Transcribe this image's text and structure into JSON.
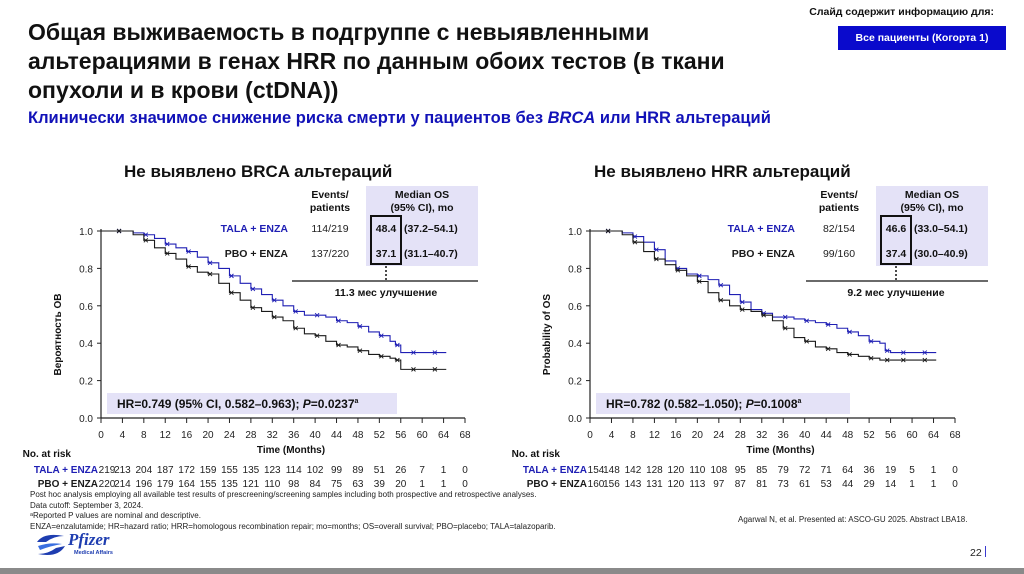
{
  "header": {
    "title": "Общая выживаемость в подгруппе с невыявленными альтерациями в генах HRR по данным обоих тестов (в ткани опухоли и в крови (ctDNA))",
    "subtitle_part1": "Клинически значимое снижение риска смерти у пациентов без ",
    "subtitle_italic": "BRCA",
    "subtitle_part2": " или HRR альтераций",
    "info_label": "Слайд содержит информацию для:",
    "info_badge": "Все пациенты (Когорта 1)"
  },
  "colors": {
    "tala_enza": "#1f1fb4",
    "pbo_enza": "#1a1a1a",
    "table_highlight": "#e4e2f7",
    "badge_bg": "#0a0acc",
    "subtitle": "#1212b8"
  },
  "table_headers": {
    "events": "Events/",
    "patients": "patients",
    "median_os": "Median OS",
    "ci": "(95% CI), mo"
  },
  "axis": {
    "xlabel": "Time (Months)",
    "at_risk_label": "No. at risk",
    "x_ticks": [
      "0",
      "4",
      "8",
      "12",
      "16",
      "20",
      "24",
      "28",
      "32",
      "36",
      "40",
      "44",
      "48",
      "52",
      "56",
      "60",
      "64",
      "68"
    ],
    "y_ticks": [
      "0.0",
      "0.2",
      "0.4",
      "0.6",
      "0.8",
      "1.0"
    ]
  },
  "panels": [
    {
      "title": "Не выявлено BRCA альтераций",
      "ylabel": "Вероятность ОВ",
      "arms": [
        {
          "name": "TALA + ENZA",
          "events": "114/219",
          "median": "48.4",
          "ci": "(37.2–54.1)"
        },
        {
          "name": "PBO + ENZA",
          "events": "137/220",
          "median": "37.1",
          "ci": "(31.1–40.7)"
        }
      ],
      "improvement": "11.3 мес улучшение",
      "hr_text": "HR=0.749 (95% CI, 0.582–0.963); ",
      "p_label": "P",
      "p_value": "=0.0237",
      "p_sup": "a",
      "at_risk": {
        "TALA + ENZA": [
          "219",
          "213",
          "204",
          "187",
          "172",
          "159",
          "155",
          "135",
          "123",
          "114",
          "102",
          "99",
          "89",
          "51",
          "26",
          "7",
          "1",
          "0"
        ],
        "PBO + ENZA": [
          "220",
          "214",
          "196",
          "179",
          "164",
          "155",
          "135",
          "121",
          "110",
          "98",
          "84",
          "75",
          "63",
          "39",
          "20",
          "1",
          "1",
          "0"
        ]
      }
    },
    {
      "title": "Не выявлено HRR альтераций",
      "ylabel": "Probability of OS",
      "arms": [
        {
          "name": "TALA + ENZA",
          "events": "82/154",
          "median": "46.6",
          "ci": "(33.0–54.1)"
        },
        {
          "name": "PBO + ENZA",
          "events": "99/160",
          "median": "37.4",
          "ci": "(30.0–40.9)"
        }
      ],
      "improvement": "9.2 мес улучшение",
      "hr_text": "HR=0.782 (0.582–1.050); ",
      "p_label": "P",
      "p_value": "=0.1008",
      "p_sup": "a",
      "at_risk": {
        "TALA + ENZA": [
          "154",
          "148",
          "142",
          "128",
          "120",
          "110",
          "108",
          "95",
          "85",
          "79",
          "72",
          "71",
          "64",
          "36",
          "19",
          "5",
          "1",
          "0"
        ],
        "PBO + ENZA": [
          "160",
          "156",
          "143",
          "131",
          "120",
          "113",
          "97",
          "87",
          "81",
          "73",
          "61",
          "53",
          "44",
          "29",
          "14",
          "1",
          "1",
          "0"
        ]
      }
    }
  ],
  "footer": {
    "notes": [
      "Post hoc analysis employing all available test results of prescreening/screening samples including both prospective and retrospective analyses.",
      "Data cutoff: September 3, 2024.",
      "ᵃReported P values are nominal and descriptive.",
      "ENZA=enzalutamide; HR=hazard ratio; HRR=homologous recombination repair; mo=months; OS=overall survival; PBO=placebo; TALA=talazoparib."
    ],
    "citation": "Agarwal N, et al. Presented at: ASCO-GU 2025. Abstract LBA18.",
    "page": "22",
    "logo_text": "Pfizer",
    "logo_sub": "Medical Affairs"
  },
  "chart_data": [
    {
      "type": "line",
      "title": "Не выявлено BRCA альтераций",
      "xlabel": "Time (Months)",
      "ylabel": "Вероятность ОВ",
      "xlim": [
        0,
        68
      ],
      "ylim": [
        0,
        1.0
      ],
      "x_ticks": [
        0,
        4,
        8,
        12,
        16,
        20,
        24,
        28,
        32,
        36,
        40,
        44,
        48,
        52,
        56,
        60,
        64,
        68
      ],
      "y_ticks": [
        0.0,
        0.2,
        0.4,
        0.6,
        0.8,
        1.0
      ],
      "grid": false,
      "step": true,
      "series": [
        {
          "name": "TALA + ENZA",
          "color": "#1f1fb4",
          "x": [
            0,
            3,
            6,
            8,
            10,
            12,
            14,
            16,
            18,
            20,
            22,
            24,
            26,
            28,
            30,
            32,
            34,
            36,
            38,
            40,
            42,
            44,
            46,
            48,
            50,
            52,
            54,
            55,
            56,
            58,
            60,
            62,
            64
          ],
          "y": [
            1.0,
            1.0,
            0.99,
            0.98,
            0.96,
            0.93,
            0.91,
            0.89,
            0.86,
            0.83,
            0.8,
            0.76,
            0.72,
            0.69,
            0.66,
            0.63,
            0.6,
            0.57,
            0.55,
            0.55,
            0.54,
            0.52,
            0.51,
            0.49,
            0.46,
            0.44,
            0.41,
            0.39,
            0.35,
            0.35,
            0.35,
            0.35,
            0.35
          ]
        },
        {
          "name": "PBO + ENZA",
          "color": "#1a1a1a",
          "x": [
            0,
            3,
            6,
            8,
            10,
            12,
            14,
            16,
            18,
            20,
            22,
            24,
            26,
            28,
            30,
            32,
            34,
            36,
            38,
            40,
            42,
            44,
            46,
            48,
            50,
            52,
            54,
            55,
            56,
            58,
            60,
            62,
            64
          ],
          "y": [
            1.0,
            1.0,
            0.98,
            0.95,
            0.91,
            0.88,
            0.85,
            0.81,
            0.78,
            0.77,
            0.72,
            0.67,
            0.63,
            0.59,
            0.57,
            0.54,
            0.52,
            0.48,
            0.45,
            0.44,
            0.41,
            0.39,
            0.38,
            0.36,
            0.34,
            0.33,
            0.32,
            0.31,
            0.26,
            0.26,
            0.26,
            0.26,
            0.26
          ]
        }
      ],
      "annotations": [
        "114/219 vs 137/220 events/patients",
        "Median OS 48.4 (37.2–54.1) vs 37.1 (31.1–40.7) mo",
        "11.3 мес улучшение",
        "HR=0.749 (95% CI, 0.582–0.963); P=0.0237"
      ]
    },
    {
      "type": "line",
      "title": "Не выявлено HRR альтераций",
      "xlabel": "Time (Months)",
      "ylabel": "Probability of OS",
      "xlim": [
        0,
        68
      ],
      "ylim": [
        0,
        1.0
      ],
      "x_ticks": [
        0,
        4,
        8,
        12,
        16,
        20,
        24,
        28,
        32,
        36,
        40,
        44,
        48,
        52,
        56,
        60,
        64,
        68
      ],
      "y_ticks": [
        0.0,
        0.2,
        0.4,
        0.6,
        0.8,
        1.0
      ],
      "grid": false,
      "step": true,
      "series": [
        {
          "name": "TALA + ENZA",
          "color": "#1f1fb4",
          "x": [
            0,
            3,
            6,
            8,
            10,
            12,
            14,
            16,
            18,
            20,
            22,
            24,
            26,
            28,
            30,
            32,
            34,
            36,
            38,
            40,
            42,
            44,
            46,
            48,
            50,
            52,
            54,
            55,
            56,
            58,
            60,
            62,
            64
          ],
          "y": [
            1.0,
            1.0,
            0.99,
            0.97,
            0.94,
            0.9,
            0.84,
            0.8,
            0.77,
            0.76,
            0.74,
            0.71,
            0.66,
            0.62,
            0.58,
            0.56,
            0.54,
            0.54,
            0.53,
            0.52,
            0.51,
            0.5,
            0.48,
            0.46,
            0.44,
            0.41,
            0.4,
            0.36,
            0.35,
            0.35,
            0.35,
            0.35,
            0.35
          ]
        },
        {
          "name": "PBO + ENZA",
          "color": "#1a1a1a",
          "x": [
            0,
            3,
            6,
            8,
            10,
            12,
            14,
            16,
            18,
            20,
            22,
            24,
            26,
            28,
            30,
            32,
            34,
            36,
            38,
            40,
            42,
            44,
            46,
            48,
            50,
            52,
            54,
            55,
            56,
            58,
            60,
            62,
            64
          ],
          "y": [
            1.0,
            1.0,
            0.98,
            0.94,
            0.89,
            0.85,
            0.82,
            0.79,
            0.76,
            0.73,
            0.67,
            0.63,
            0.6,
            0.58,
            0.57,
            0.55,
            0.52,
            0.48,
            0.43,
            0.41,
            0.38,
            0.37,
            0.35,
            0.34,
            0.33,
            0.32,
            0.31,
            0.31,
            0.31,
            0.31,
            0.31,
            0.31,
            0.31
          ]
        }
      ],
      "annotations": [
        "82/154 vs 99/160 events/patients",
        "Median OS 46.6 (33.0–54.1) vs 37.4 (30.0–40.9) mo",
        "9.2 мес улучшение",
        "HR=0.782 (0.582–1.050); P=0.1008"
      ]
    }
  ]
}
